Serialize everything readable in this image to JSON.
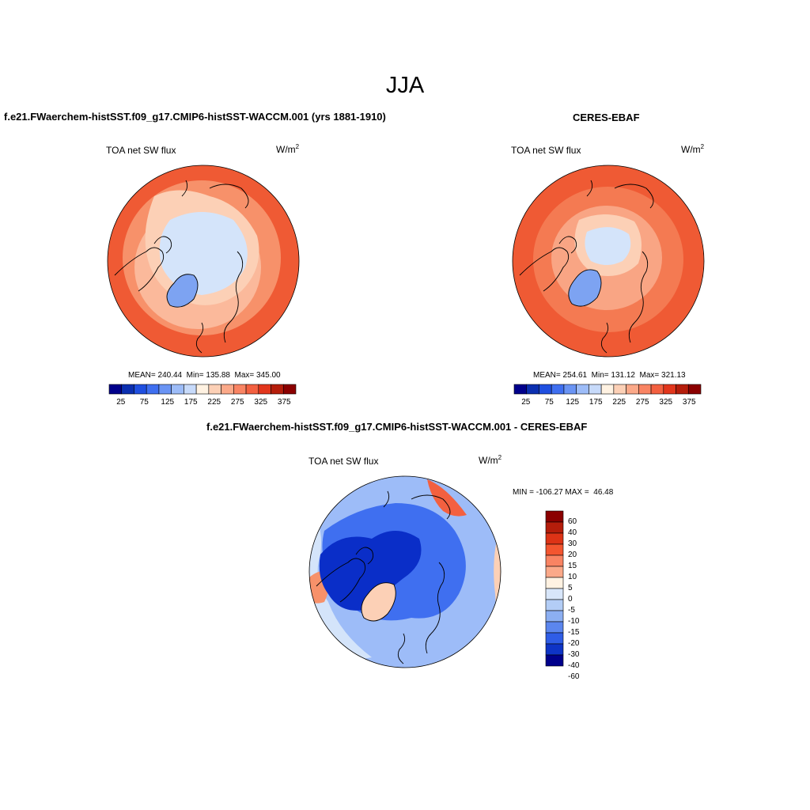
{
  "page": {
    "main_title": "JJA"
  },
  "colors": {
    "hbar": [
      "#00008b",
      "#0b2fb0",
      "#1f4fe0",
      "#3f6ff0",
      "#6a94f4",
      "#9dbcf8",
      "#c7dafa",
      "#fff2e2",
      "#fcd0b6",
      "#fba989",
      "#f98463",
      "#f36040",
      "#e2361c",
      "#b51d0b",
      "#8b0000"
    ],
    "vbar": [
      "#8b0000",
      "#b51d0b",
      "#dd3316",
      "#f3552f",
      "#f98463",
      "#fba989",
      "#fff2e2",
      "#d8e6fa",
      "#b3cdf6",
      "#8caff2",
      "#5b86ee",
      "#2f5de6",
      "#0e34c6",
      "#00008b"
    ],
    "map_warm_outer": "#ef5a34",
    "map_warm_mid": "#f7916a",
    "map_warm_inner": "#fbb99b",
    "map_cool": "#d4e4fa",
    "map_cool_deep": "#7da3f2",
    "diff_deep_blue": "#0a2ec8",
    "diff_mid_blue": "#3f6ff0",
    "diff_light_blue": "#9dbcf8",
    "diff_warm": "#f36040"
  },
  "chart_data": [
    {
      "type": "contour-map",
      "title": "f.e21.FWaerchem-histSST.f09_g17.CMIP6-histSST-WACCM.001 (yrs 1881-1910)",
      "variable": "TOA net SW flux",
      "units_base": "W/m",
      "units_exp": "2",
      "projection": "north polar stereographic",
      "stats": "MEAN= 240.44  Min= 135.88  Max= 345.00",
      "mean": 240.44,
      "min": 135.88,
      "max": 345.0,
      "colorbar": {
        "orientation": "horizontal",
        "levels": [
          25,
          75,
          125,
          175,
          225,
          275,
          325,
          375
        ],
        "labels": [
          "25",
          "75",
          "125",
          "175",
          "225",
          "275",
          "325",
          "375"
        ],
        "range": [
          0,
          400
        ]
      }
    },
    {
      "type": "contour-map",
      "title": "CERES-EBAF",
      "variable": "TOA net SW flux",
      "units_base": "W/m",
      "units_exp": "2",
      "projection": "north polar stereographic",
      "stats": "MEAN= 254.61  Min= 131.12  Max= 321.13",
      "mean": 254.61,
      "min": 131.12,
      "max": 321.13,
      "colorbar": {
        "orientation": "horizontal",
        "levels": [
          25,
          75,
          125,
          175,
          225,
          275,
          325,
          375
        ],
        "labels": [
          "25",
          "75",
          "125",
          "175",
          "225",
          "275",
          "325",
          "375"
        ],
        "range": [
          0,
          400
        ]
      }
    },
    {
      "type": "contour-map",
      "title": "f.e21.FWaerchem-histSST.f09_g17.CMIP6-histSST-WACCM.001 - CERES-EBAF",
      "variable": "TOA net SW flux",
      "units_base": "W/m",
      "units_exp": "2",
      "projection": "north polar stereographic",
      "stats": "MIN = -106.27 MAX =  46.48",
      "min": -106.27,
      "max": 46.48,
      "colorbar": {
        "orientation": "vertical",
        "levels": [
          60,
          40,
          30,
          20,
          15,
          10,
          5,
          0,
          -5,
          -10,
          -15,
          -20,
          -30,
          -40,
          -60
        ],
        "labels": [
          "60",
          "40",
          "30",
          "20",
          "15",
          "10",
          "5",
          "0",
          "-5",
          "-10",
          "-15",
          "-20",
          "-30",
          "-40",
          "-60"
        ]
      }
    }
  ]
}
